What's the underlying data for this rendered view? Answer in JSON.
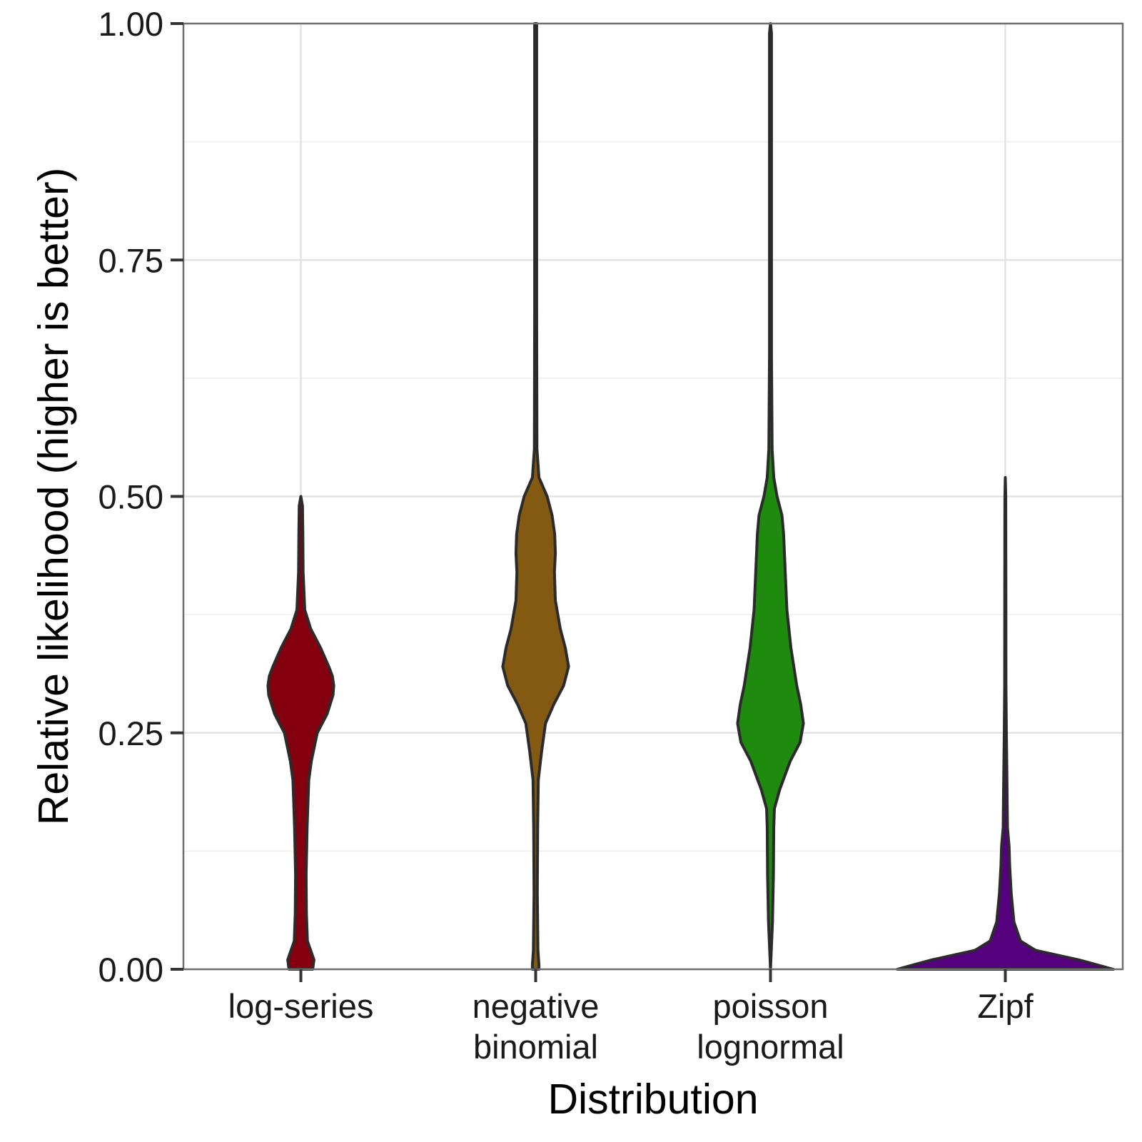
{
  "chart_data": {
    "type": "violin",
    "xlabel": "Distribution",
    "ylabel": "Relative likelihood (higher is better)",
    "ylim": [
      0,
      1
    ],
    "yticks": [
      "0.00",
      "0.25",
      "0.50",
      "0.75",
      "1.00"
    ],
    "grid": true,
    "categories": [
      {
        "lines": [
          "log-series"
        ]
      },
      {
        "lines": [
          "negative",
          "binomial"
        ]
      },
      {
        "lines": [
          "poisson",
          "lognormal"
        ]
      },
      {
        "lines": [
          "Zipf"
        ]
      }
    ],
    "series": [
      {
        "color": "#85000F",
        "max_halfwidth": 0.14,
        "profile": [
          [
            0,
            0.36
          ],
          [
            0.01,
            0.4
          ],
          [
            0.02,
            0.3
          ],
          [
            0.03,
            0.2
          ],
          [
            0.06,
            0.17
          ],
          [
            0.1,
            0.16
          ],
          [
            0.15,
            0.19
          ],
          [
            0.2,
            0.24
          ],
          [
            0.22,
            0.32
          ],
          [
            0.25,
            0.5
          ],
          [
            0.27,
            0.8
          ],
          [
            0.29,
            0.98
          ],
          [
            0.3,
            1.0
          ],
          [
            0.31,
            0.96
          ],
          [
            0.32,
            0.85
          ],
          [
            0.34,
            0.6
          ],
          [
            0.36,
            0.3
          ],
          [
            0.38,
            0.12
          ],
          [
            0.42,
            0.07
          ],
          [
            0.46,
            0.06
          ],
          [
            0.49,
            0.05
          ],
          [
            0.5,
            0.0
          ]
        ]
      },
      {
        "color": "#845A13",
        "max_halfwidth": 0.14,
        "profile": [
          [
            0,
            0.1
          ],
          [
            0.005,
            0.1
          ],
          [
            0.02,
            0.07
          ],
          [
            0.08,
            0.05
          ],
          [
            0.15,
            0.06
          ],
          [
            0.2,
            0.08
          ],
          [
            0.23,
            0.18
          ],
          [
            0.26,
            0.3
          ],
          [
            0.28,
            0.55
          ],
          [
            0.3,
            0.85
          ],
          [
            0.32,
            1.0
          ],
          [
            0.34,
            0.9
          ],
          [
            0.36,
            0.75
          ],
          [
            0.39,
            0.6
          ],
          [
            0.42,
            0.57
          ],
          [
            0.44,
            0.6
          ],
          [
            0.46,
            0.58
          ],
          [
            0.48,
            0.5
          ],
          [
            0.5,
            0.35
          ],
          [
            0.52,
            0.1
          ],
          [
            0.55,
            0.04
          ],
          [
            0.7,
            0.03
          ],
          [
            1.0,
            0.03
          ]
        ]
      },
      {
        "color": "#1E8A0E",
        "max_halfwidth": 0.14,
        "profile": [
          [
            0,
            0.0
          ],
          [
            0.05,
            0.06
          ],
          [
            0.1,
            0.09
          ],
          [
            0.15,
            0.1
          ],
          [
            0.17,
            0.12
          ],
          [
            0.19,
            0.28
          ],
          [
            0.22,
            0.6
          ],
          [
            0.24,
            0.9
          ],
          [
            0.26,
            1.0
          ],
          [
            0.28,
            0.92
          ],
          [
            0.3,
            0.8
          ],
          [
            0.34,
            0.62
          ],
          [
            0.38,
            0.5
          ],
          [
            0.42,
            0.45
          ],
          [
            0.46,
            0.4
          ],
          [
            0.48,
            0.35
          ],
          [
            0.5,
            0.2
          ],
          [
            0.52,
            0.1
          ],
          [
            0.55,
            0.05
          ],
          [
            0.65,
            0.03
          ],
          [
            0.99,
            0.03
          ],
          [
            1.0,
            0.0
          ]
        ]
      },
      {
        "color": "#55007D",
        "max_halfwidth": 0.46,
        "profile": [
          [
            0,
            1.0
          ],
          [
            0.01,
            0.68
          ],
          [
            0.02,
            0.28
          ],
          [
            0.03,
            0.14
          ],
          [
            0.05,
            0.08
          ],
          [
            0.08,
            0.055
          ],
          [
            0.11,
            0.04
          ],
          [
            0.13,
            0.035
          ],
          [
            0.15,
            0.02
          ],
          [
            0.2,
            0.015
          ],
          [
            0.25,
            0.01
          ],
          [
            0.3,
            0.006
          ],
          [
            0.4,
            0.005
          ],
          [
            0.5,
            0.004
          ],
          [
            0.52,
            0.0
          ]
        ]
      }
    ]
  }
}
